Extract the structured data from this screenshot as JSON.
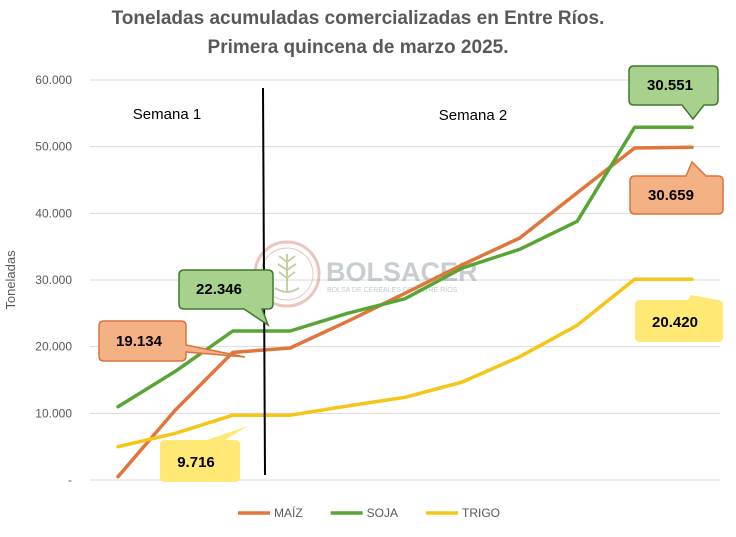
{
  "chart_data": {
    "type": "line",
    "title_line1": "Toneladas acumuladas comercializadas en Entre Ríos.",
    "title_line2": "Primera quincena de marzo 2025.",
    "ylabel": "Toneladas",
    "ylim": [
      0,
      60000
    ],
    "yticks": [
      "-",
      "10.000",
      "20.000",
      "30.000",
      "40.000",
      "50.000",
      "60.000"
    ],
    "ytick_values": [
      0,
      10000,
      20000,
      30000,
      40000,
      50000,
      60000
    ],
    "grid": true,
    "x_points": 11,
    "divider_after_point": 4,
    "week_labels": [
      "Semana 1",
      "Semana 2"
    ],
    "series": [
      {
        "name": "MAÍZ",
        "color": "#e0763b",
        "values": [
          500,
          10500,
          19134,
          19800,
          23800,
          28000,
          32300,
          36300,
          43100,
          49800,
          49900
        ]
      },
      {
        "name": "SOJA",
        "color": "#58a535",
        "values": [
          11000,
          16300,
          22346,
          22346,
          25000,
          27200,
          31800,
          34600,
          38800,
          52900,
          52900
        ]
      },
      {
        "name": "TRIGO",
        "color": "#f5c518",
        "values": [
          5000,
          7000,
          9716,
          9716,
          11100,
          12400,
          14700,
          18500,
          23200,
          30100,
          30100
        ]
      }
    ],
    "annotations": [
      {
        "text": "22.346",
        "series": "SOJA"
      },
      {
        "text": "19.134",
        "series": "MAÍZ"
      },
      {
        "text": "9.716",
        "series": "TRIGO"
      },
      {
        "text": "30.551",
        "series": "SOJA"
      },
      {
        "text": "30.659",
        "series": "MAÍZ"
      },
      {
        "text": "20.420",
        "series": "TRIGO"
      }
    ],
    "legend_position": "bottom"
  },
  "watermark": {
    "brand": "BOLSACER",
    "subtitle": "BOLSA DE CEREALES DE ENTRE RÍOS",
    "icon": "wheat-seal-icon"
  }
}
